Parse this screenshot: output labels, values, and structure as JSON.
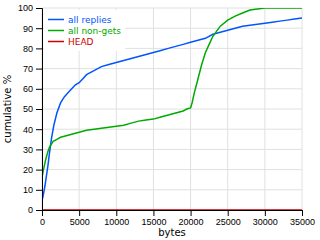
{
  "chart_data": {
    "type": "line",
    "xlabel": "bytes",
    "ylabel": "cumulative %",
    "xlim": [
      0,
      35000
    ],
    "ylim": [
      0,
      100
    ],
    "xticks": [
      0,
      5000,
      10000,
      15000,
      20000,
      25000,
      30000,
      35000
    ],
    "yticks": [
      0,
      10,
      20,
      30,
      40,
      50,
      60,
      70,
      80,
      90,
      100
    ],
    "grid": true,
    "legend": "top-left",
    "series": [
      {
        "name": "all replies",
        "color": "#0055ff",
        "x": [
          0,
          100,
          200,
          400,
          600,
          800,
          1000,
          1300,
          1600,
          2000,
          2500,
          3000,
          3500,
          4000,
          4500,
          5000,
          5500,
          6000,
          7000,
          8000,
          9000,
          10000,
          11000,
          12000,
          13000,
          14000,
          15000,
          16000,
          17000,
          18000,
          19000,
          20000,
          21000,
          22000,
          23000,
          24000,
          25000,
          26000,
          27000,
          28000,
          29000,
          30000,
          31000,
          32000,
          33000,
          34000,
          35000
        ],
        "values": [
          5,
          6,
          8,
          12,
          17,
          22,
          28,
          36,
          42,
          48,
          53,
          56,
          58,
          60,
          62,
          63,
          65,
          67,
          69,
          71,
          72,
          73,
          74,
          75,
          76,
          77,
          78,
          79,
          80,
          81,
          82,
          83,
          84,
          85,
          87,
          88,
          89,
          90,
          91,
          91.5,
          92,
          92.5,
          93,
          93.5,
          94,
          94.5,
          95
        ]
      },
      {
        "name": "all non-gets",
        "color": "#00aa00",
        "x": [
          0,
          200,
          500,
          800,
          1000,
          1500,
          2000,
          2500,
          3000,
          3500,
          4000,
          5000,
          6000,
          7000,
          8000,
          9000,
          10000,
          11000,
          12000,
          13000,
          14000,
          15000,
          16000,
          17000,
          18000,
          19000,
          19500,
          20000,
          20200,
          20500,
          21000,
          21500,
          22000,
          22500,
          23000,
          24000,
          25000,
          26000,
          27000,
          28000,
          29000,
          30000,
          31000,
          35000
        ],
        "values": [
          16,
          20,
          25,
          29,
          31,
          34,
          35,
          36,
          36.5,
          37,
          37.5,
          38.5,
          39.5,
          40,
          40.5,
          41,
          41.5,
          42,
          43,
          44,
          44.5,
          45,
          46,
          47,
          48,
          49,
          50,
          50.5,
          53,
          58,
          65,
          72,
          78,
          82,
          86,
          91,
          94,
          96,
          97.5,
          99,
          99.5,
          100,
          100,
          100
        ]
      },
      {
        "name": "HEAD",
        "color": "#cc0000",
        "x": [
          0,
          35000
        ],
        "values": [
          0,
          0
        ]
      }
    ]
  }
}
